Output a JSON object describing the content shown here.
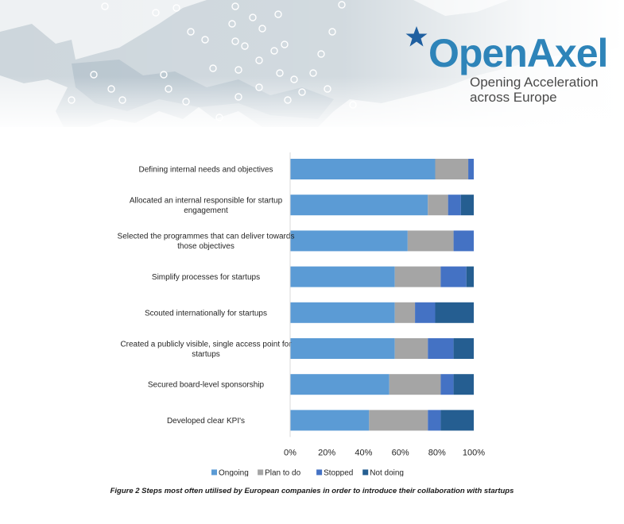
{
  "header": {
    "brand_name": "OpenAxel",
    "tagline_line1": "Opening Acceleration",
    "tagline_line2": "across Europe",
    "brand_color": "#2e84b9",
    "star_color": "#1f5fa0"
  },
  "chart_data": {
    "type": "bar",
    "orientation": "horizontal",
    "stacked": "percent",
    "categories": [
      "Defining internal needs and objectives",
      "Allocated an internal responsible for startup engagement",
      "Selected the programmes that can deliver towards those objectives",
      "Simplify processes for startups",
      "Scouted internationally for startups",
      "Created a publicly visible, single access point for startups",
      "Secured board-level sponsorship",
      "Developed clear KPI's"
    ],
    "category_lines": [
      [
        "Defining internal needs and objectives"
      ],
      [
        "Allocated an internal responsible for startup",
        "engagement"
      ],
      [
        "Selected the programmes that can deliver towards",
        "those objectives"
      ],
      [
        "Simplify processes for startups"
      ],
      [
        "Scouted internationally for startups"
      ],
      [
        "Created a publicly visible, single access point for",
        "startups"
      ],
      [
        "Secured board-level sponsorship"
      ],
      [
        "Developed clear KPI's"
      ]
    ],
    "series": [
      {
        "name": "Ongoing",
        "color": "#5b9bd5",
        "values": [
          79,
          75,
          64,
          57,
          57,
          57,
          54,
          43
        ]
      },
      {
        "name": "Plan to do",
        "color": "#a5a5a5",
        "values": [
          18,
          11,
          25,
          25,
          11,
          18,
          28,
          32
        ]
      },
      {
        "name": "Stopped",
        "color": "#4472c4",
        "values": [
          3,
          7,
          11,
          14,
          11,
          14,
          7,
          7
        ]
      },
      {
        "name": "Not doing",
        "color": "#255e91",
        "values": [
          0,
          7,
          0,
          4,
          21,
          11,
          11,
          18
        ]
      }
    ],
    "xlim": [
      0,
      100
    ],
    "xticks": [
      "0%",
      "20%",
      "40%",
      "60%",
      "80%",
      "100%"
    ],
    "grid": false,
    "legend_position": "bottom"
  },
  "caption": "Figure 2 Steps most often utilised by European companies in order to introduce their collaboration with startups"
}
